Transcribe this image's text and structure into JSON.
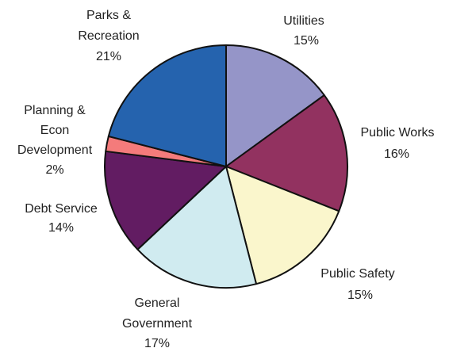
{
  "chart_data": {
    "type": "pie",
    "start_angle_deg": 0,
    "direction": "clockwise",
    "slices": [
      {
        "label_lines": [
          "Utilities"
        ],
        "percent_text": "15%",
        "value": 15,
        "color": "#9595C8"
      },
      {
        "label_lines": [
          "Public Works"
        ],
        "percent_text": "16%",
        "value": 16,
        "color": "#923260"
      },
      {
        "label_lines": [
          "Public Safety"
        ],
        "percent_text": "15%",
        "value": 15,
        "color": "#FAF6CC"
      },
      {
        "label_lines": [
          "General",
          "Government"
        ],
        "percent_text": "17%",
        "value": 17,
        "color": "#D0EBF0"
      },
      {
        "label_lines": [
          "Debt Service"
        ],
        "percent_text": "14%",
        "value": 14,
        "color": "#621C62"
      },
      {
        "label_lines": [
          "Planning &",
          "Econ",
          "Development"
        ],
        "percent_text": "2%",
        "value": 2,
        "color": "#F47B7B"
      },
      {
        "label_lines": [
          "Parks &",
          "Recreation"
        ],
        "percent_text": "21%",
        "value": 21,
        "color": "#2563AE"
      }
    ]
  }
}
